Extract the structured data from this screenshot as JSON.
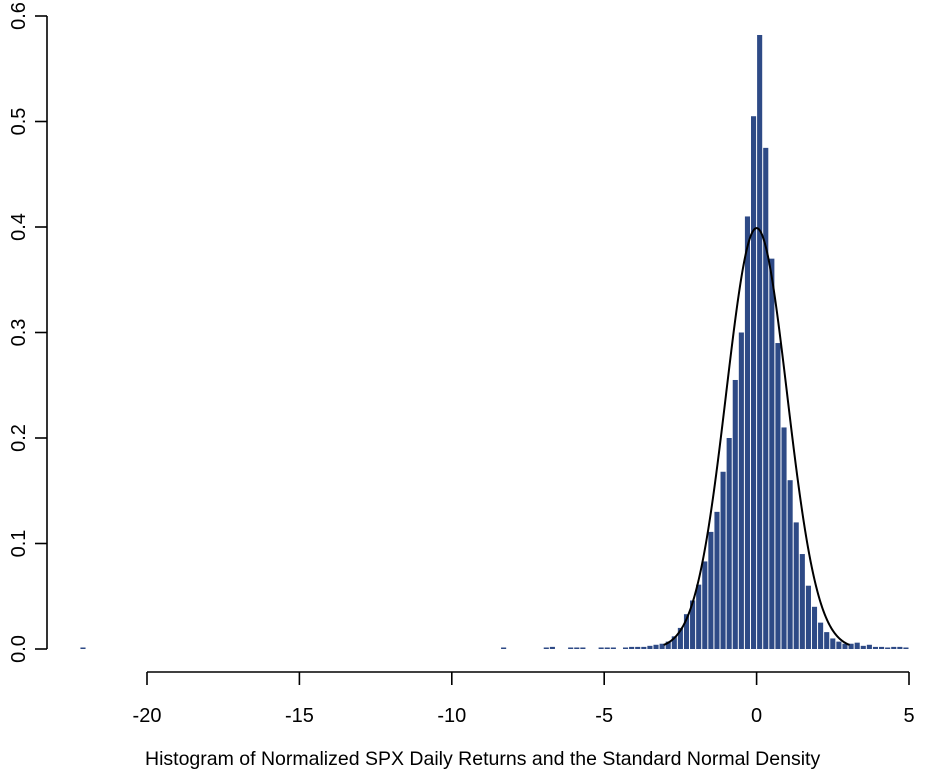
{
  "chart_data": {
    "type": "bar",
    "title": "",
    "caption": "Histogram of Normalized SPX Daily Returns and the Standard Normal Density",
    "xlabel": "",
    "ylabel": "",
    "xlim": [
      -22,
      5
    ],
    "ylim": [
      0,
      0.6
    ],
    "x_ticks": [
      -20,
      -15,
      -10,
      -5,
      0,
      5
    ],
    "y_ticks": [
      0.0,
      0.1,
      0.2,
      0.3,
      0.4,
      0.5,
      0.6
    ],
    "x_tick_labels": [
      "-20",
      "-15",
      "-10",
      "-5",
      "0",
      "5"
    ],
    "y_tick_labels": [
      "0.0",
      "0.1",
      "0.2",
      "0.3",
      "0.4",
      "0.5",
      "0.6"
    ],
    "bin_width": 0.2,
    "bar_color": "#2e4a86",
    "curve_color": "#000000",
    "grid": false,
    "series": [
      {
        "type": "histogram",
        "bin_centers": [
          -22.1,
          -8.3,
          -6.9,
          -6.7,
          -6.1,
          -5.9,
          -5.7,
          -5.1,
          -4.9,
          -4.7,
          -4.3,
          -4.1,
          -3.9,
          -3.7,
          -3.5,
          -3.3,
          -3.1,
          -2.9,
          -2.7,
          -2.5,
          -2.3,
          -2.1,
          -1.9,
          -1.7,
          -1.5,
          -1.3,
          -1.1,
          -0.9,
          -0.7,
          -0.5,
          -0.3,
          -0.1,
          0.1,
          0.3,
          0.5,
          0.7,
          0.9,
          1.1,
          1.3,
          1.5,
          1.7,
          1.9,
          2.1,
          2.3,
          2.5,
          2.7,
          2.9,
          3.1,
          3.3,
          3.5,
          3.7,
          3.9,
          4.1,
          4.3,
          4.5,
          4.7,
          4.9
        ],
        "densities": [
          0.001,
          0.001,
          0.001,
          0.002,
          0.001,
          0.001,
          0.001,
          0.001,
          0.001,
          0.001,
          0.001,
          0.002,
          0.002,
          0.002,
          0.003,
          0.004,
          0.005,
          0.007,
          0.012,
          0.02,
          0.033,
          0.046,
          0.061,
          0.083,
          0.111,
          0.13,
          0.168,
          0.2,
          0.255,
          0.3,
          0.41,
          0.505,
          0.582,
          0.475,
          0.37,
          0.29,
          0.21,
          0.16,
          0.12,
          0.09,
          0.06,
          0.04,
          0.025,
          0.016,
          0.01,
          0.007,
          0.005,
          0.005,
          0.006,
          0.003,
          0.004,
          0.002,
          0.002,
          0.001,
          0.002,
          0.002,
          0.001
        ]
      },
      {
        "type": "line",
        "function": "standard-normal-density",
        "x_range": [
          -3.05,
          3.05
        ]
      }
    ]
  }
}
